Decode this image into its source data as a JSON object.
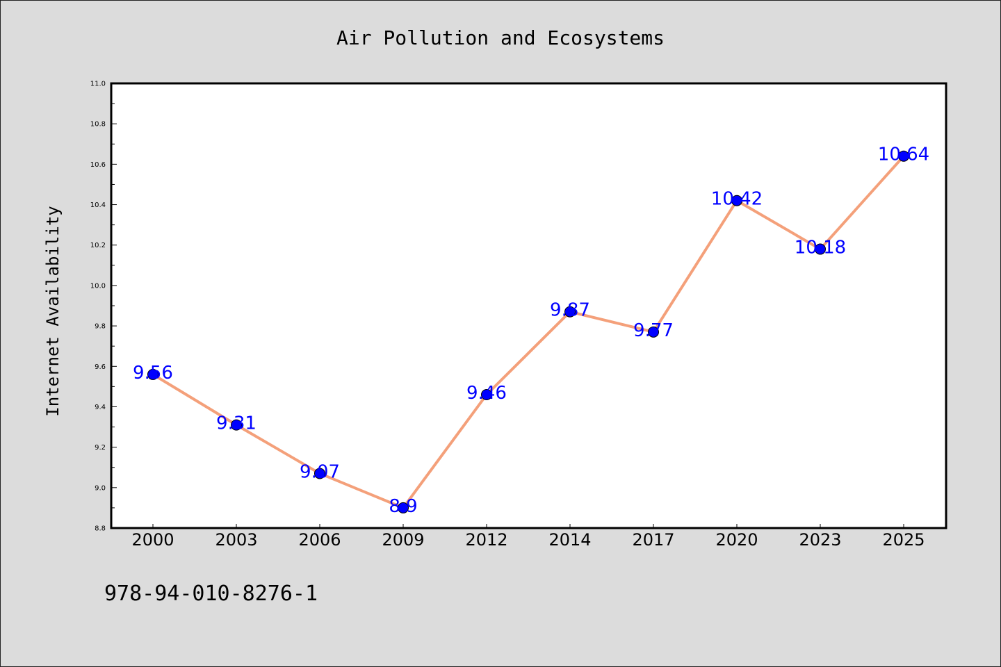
{
  "colors": {
    "background": "#dcdcdc",
    "plot_background": "#ffffff",
    "line": "#f4a07a",
    "marker": "#0000ff",
    "data_label": "#0000ff"
  },
  "footer": {
    "code": "978-94-010-8276-1"
  },
  "chart_data": {
    "type": "line",
    "title": "Air Pollution and Ecosystems",
    "xlabel": "",
    "ylabel": "Internet Availability",
    "categories": [
      "2000",
      "2003",
      "2006",
      "2009",
      "2012",
      "2014",
      "2017",
      "2020",
      "2023",
      "2025"
    ],
    "series": [
      {
        "values": [
          9.56,
          9.31,
          9.07,
          8.9,
          9.46,
          9.87,
          9.77,
          10.42,
          10.18,
          10.64
        ]
      }
    ],
    "data_labels": [
      "9.56",
      "9.31",
      "9.07",
      "8.9",
      "9.46",
      "9.87",
      "9.77",
      "10.42",
      "10.18",
      "10.64"
    ],
    "ylim": [
      8.8,
      11.0
    ],
    "yticks": [
      "8.8",
      "9.0",
      "9.2",
      "9.4",
      "9.6",
      "9.8",
      "10.0",
      "10.2",
      "10.4",
      "10.6",
      "10.8",
      "11.0"
    ],
    "grid": false,
    "legend": "none"
  }
}
